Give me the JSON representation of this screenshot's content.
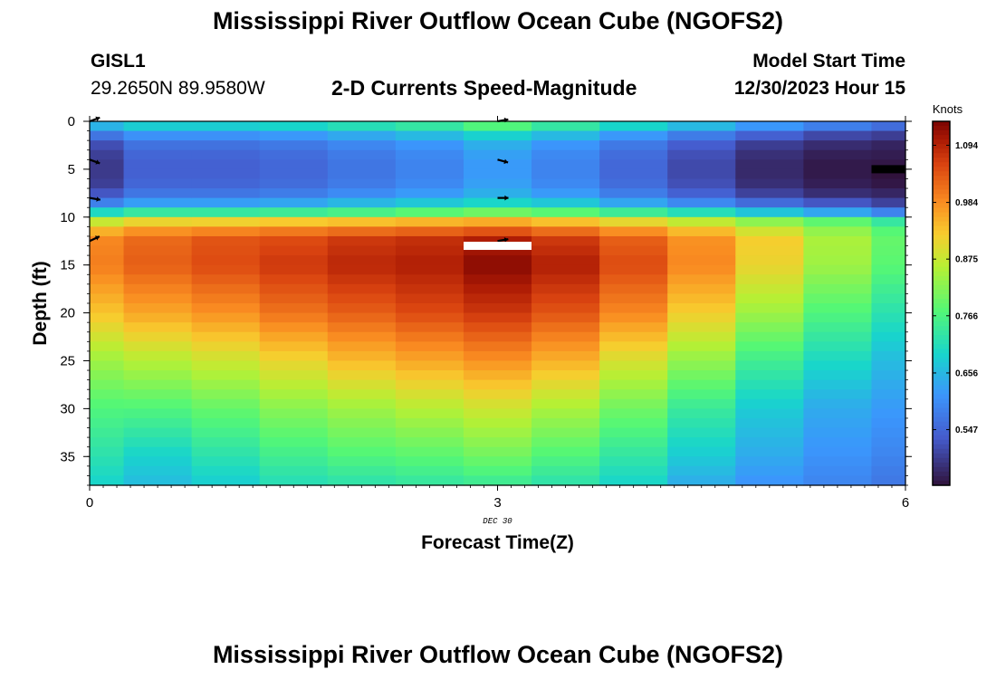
{
  "header": {
    "title": "Mississippi River Outflow Ocean Cube (NGOFS2)",
    "station": "GISL1",
    "coords": "29.2650N  89.9580W",
    "subtitle": "2-D Currents Speed-Magnitude",
    "model_start_label": "Model Start Time",
    "model_start_value": "12/30/2023 Hour 15"
  },
  "footer": {
    "title": "Mississippi River Outflow Ocean Cube (NGOFS2)"
  },
  "chart_data": {
    "type": "heatmap",
    "title": "2-D Currents Speed-Magnitude",
    "xlabel": "Forecast Time(Z)",
    "ylabel": "Depth (ft)",
    "xlim": [
      0,
      6
    ],
    "ylim": [
      0,
      38
    ],
    "y_inverted": true,
    "x_ticks": [
      "0",
      "3",
      "6"
    ],
    "y_ticks": [
      "0",
      "5",
      "10",
      "15",
      "20",
      "25",
      "30",
      "35"
    ],
    "date_label": "DEC 30",
    "colorbar": {
      "label": "Knots",
      "min": 0.44,
      "max": 1.14,
      "ticks": [
        "1.094",
        "0.984",
        "0.875",
        "0.766",
        "0.656",
        "0.547"
      ]
    },
    "times": [
      0,
      0.5,
      1,
      1.5,
      2,
      2.5,
      3,
      3.5,
      4,
      4.5,
      5,
      5.5,
      6
    ],
    "profiles": {
      "surface": {
        "depth": [
          0,
          0.8,
          1.6,
          2.6,
          4,
          5.5,
          7,
          8,
          9,
          9.8
        ],
        "values": [
          [
            0.7,
            0.62,
            0.56,
            0.51,
            0.49,
            0.49,
            0.5,
            0.55,
            0.62,
            0.75
          ],
          [
            0.72,
            0.66,
            0.6,
            0.56,
            0.54,
            0.54,
            0.55,
            0.59,
            0.66,
            0.78
          ],
          [
            0.72,
            0.66,
            0.6,
            0.56,
            0.54,
            0.54,
            0.55,
            0.59,
            0.66,
            0.78
          ],
          [
            0.73,
            0.67,
            0.61,
            0.57,
            0.55,
            0.55,
            0.56,
            0.6,
            0.67,
            0.79
          ],
          [
            0.75,
            0.69,
            0.63,
            0.59,
            0.57,
            0.57,
            0.58,
            0.62,
            0.69,
            0.8
          ],
          [
            0.77,
            0.71,
            0.65,
            0.61,
            0.59,
            0.59,
            0.6,
            0.64,
            0.71,
            0.82
          ],
          [
            0.82,
            0.74,
            0.68,
            0.64,
            0.62,
            0.62,
            0.63,
            0.66,
            0.73,
            0.84
          ],
          [
            0.77,
            0.71,
            0.65,
            0.61,
            0.59,
            0.59,
            0.6,
            0.64,
            0.71,
            0.82
          ],
          [
            0.73,
            0.67,
            0.61,
            0.57,
            0.55,
            0.55,
            0.56,
            0.6,
            0.67,
            0.79
          ],
          [
            0.7,
            0.63,
            0.57,
            0.53,
            0.51,
            0.51,
            0.52,
            0.56,
            0.63,
            0.76
          ],
          [
            0.66,
            0.59,
            0.53,
            0.49,
            0.47,
            0.47,
            0.48,
            0.52,
            0.59,
            0.72
          ],
          [
            0.62,
            0.56,
            0.5,
            0.47,
            0.45,
            0.45,
            0.46,
            0.49,
            0.56,
            0.68
          ],
          [
            0.6,
            0.53,
            0.49,
            0.46,
            0.45,
            0.44,
            0.45,
            0.48,
            0.52,
            0.63
          ]
        ]
      },
      "deep": {
        "depth": [
          10,
          11,
          12.5,
          15,
          20,
          25,
          30,
          35,
          38
        ],
        "values": [
          [
            0.82,
            0.93,
            0.99,
            1.0,
            0.93,
            0.84,
            0.77,
            0.72,
            0.69
          ],
          [
            0.86,
            0.96,
            1.02,
            1.03,
            0.96,
            0.86,
            0.77,
            0.69,
            0.66
          ],
          [
            0.86,
            0.97,
            1.04,
            1.05,
            0.98,
            0.88,
            0.79,
            0.72,
            0.68
          ],
          [
            0.87,
            0.98,
            1.05,
            1.07,
            1.01,
            0.91,
            0.82,
            0.75,
            0.71
          ],
          [
            0.88,
            0.99,
            1.07,
            1.09,
            1.03,
            0.94,
            0.84,
            0.77,
            0.72
          ],
          [
            0.89,
            1.0,
            1.08,
            1.1,
            1.05,
            0.96,
            0.86,
            0.78,
            0.73
          ],
          [
            0.9,
            1.01,
            1.1,
            1.13,
            1.07,
            0.98,
            0.88,
            0.8,
            0.74
          ],
          [
            0.88,
            0.99,
            1.07,
            1.1,
            1.04,
            0.95,
            0.85,
            0.77,
            0.72
          ],
          [
            0.85,
            0.96,
            1.03,
            1.05,
            0.99,
            0.89,
            0.8,
            0.73,
            0.69
          ],
          [
            0.82,
            0.92,
            0.98,
            0.99,
            0.92,
            0.83,
            0.74,
            0.68,
            0.64
          ],
          [
            0.78,
            0.87,
            0.92,
            0.91,
            0.84,
            0.75,
            0.68,
            0.64,
            0.61
          ],
          [
            0.75,
            0.82,
            0.85,
            0.84,
            0.77,
            0.7,
            0.64,
            0.61,
            0.59
          ],
          [
            0.7,
            0.77,
            0.79,
            0.78,
            0.72,
            0.66,
            0.62,
            0.59,
            0.57
          ]
        ]
      }
    },
    "vectors": [
      {
        "time": 0,
        "depth": 0,
        "dir_deg": 20
      },
      {
        "time": 0,
        "depth": 4,
        "dir_deg": -20
      },
      {
        "time": 0,
        "depth": 8,
        "dir_deg": -10
      },
      {
        "time": 0,
        "depth": 12.5,
        "dir_deg": 25
      },
      {
        "time": 3,
        "depth": 0,
        "dir_deg": 10
      },
      {
        "time": 3,
        "depth": 4,
        "dir_deg": -15
      },
      {
        "time": 3,
        "depth": 8,
        "dir_deg": 0
      },
      {
        "time": 3,
        "depth": 12.5,
        "dir_deg": 10
      }
    ],
    "markers": [
      {
        "name": "white-bar",
        "time": 3,
        "depth": 13,
        "color": "#ffffff"
      },
      {
        "name": "black-bar",
        "time": 6,
        "depth": 5,
        "color": "#000000"
      }
    ]
  }
}
